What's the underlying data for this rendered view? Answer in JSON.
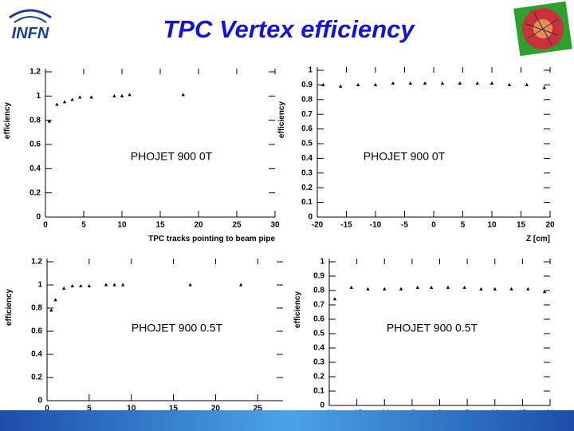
{
  "header": {
    "title": "TPC Vertex efficiency",
    "logo": "INFN"
  },
  "chart_data": [
    {
      "type": "scatter",
      "ylabel": "efficiency",
      "xlabel": "TPC tracks pointing to beam pipe",
      "annotation": "PHOJET 900 0T",
      "xlim": [
        0,
        30
      ],
      "ylim": [
        0,
        1.2
      ],
      "xticks": [
        0,
        5,
        10,
        15,
        20,
        25,
        30
      ],
      "yticks": [
        0,
        0.2,
        0.4,
        0.6,
        0.8,
        1,
        1.2
      ],
      "series": [
        {
          "color": "#000000",
          "x": [
            0.5,
            1.5,
            2.5,
            3.5,
            4.5,
            6,
            9,
            10,
            11,
            18
          ],
          "values": [
            0.79,
            0.93,
            0.95,
            0.97,
            0.99,
            0.99,
            1.0,
            1.0,
            1.01,
            1.01
          ]
        }
      ]
    },
    {
      "type": "scatter",
      "ylabel": "efficiency",
      "xlabel": "Z [cm]",
      "annotation": "PHOJET 900 0T",
      "xlim": [
        -20,
        20
      ],
      "ylim": [
        0,
        1
      ],
      "xticks": [
        -20,
        -15,
        -10,
        -5,
        0,
        5,
        10,
        15,
        20
      ],
      "yticks": [
        0,
        0.1,
        0.2,
        0.3,
        0.4,
        0.5,
        0.6,
        0.7,
        0.8,
        0.9,
        1
      ],
      "series": [
        {
          "color": "#000000",
          "x": [
            -19,
            -16,
            -13,
            -10,
            -7,
            -4,
            -1.5,
            1.5,
            4.5,
            7.5,
            10,
            13,
            16,
            19
          ],
          "values": [
            0.9,
            0.89,
            0.9,
            0.9,
            0.91,
            0.91,
            0.91,
            0.91,
            0.91,
            0.91,
            0.91,
            0.9,
            0.9,
            0.88
          ]
        }
      ]
    },
    {
      "type": "scatter",
      "ylabel": "efficiency",
      "annotation": "PHOJET 900 0.5T",
      "xlim": [
        0,
        28
      ],
      "ylim": [
        0,
        1.2
      ],
      "xticks": [
        0,
        5,
        10,
        15,
        20,
        25
      ],
      "yticks": [
        0,
        0.2,
        0.4,
        0.6,
        0.8,
        1,
        1.2
      ],
      "series": [
        {
          "color": "#000000",
          "x": [
            0.5,
            1,
            2,
            3,
            4,
            5,
            7,
            8,
            9,
            17,
            23
          ],
          "values": [
            0.78,
            0.87,
            0.97,
            0.99,
            0.99,
            0.99,
            1.0,
            1.0,
            1.0,
            1.0,
            1.0
          ]
        }
      ]
    },
    {
      "type": "scatter",
      "ylabel": "efficiency",
      "annotation": "PHOJET 900 0.5T",
      "xlim": [
        -20,
        20
      ],
      "ylim": [
        0,
        1
      ],
      "xticks": [
        -20,
        -15,
        -10,
        -5,
        0,
        5,
        10,
        15,
        20
      ],
      "yticks": [
        0,
        0.1,
        0.2,
        0.3,
        0.4,
        0.5,
        0.6,
        0.7,
        0.8,
        0.9,
        1
      ],
      "series": [
        {
          "color": "#000000",
          "x": [
            -19,
            -16,
            -13,
            -10,
            -7,
            -4,
            -1.5,
            1.5,
            4.5,
            7.5,
            10,
            13,
            16,
            19
          ],
          "values": [
            0.74,
            0.82,
            0.81,
            0.81,
            0.81,
            0.82,
            0.82,
            0.82,
            0.82,
            0.81,
            0.81,
            0.81,
            0.81,
            0.79
          ]
        }
      ]
    }
  ]
}
